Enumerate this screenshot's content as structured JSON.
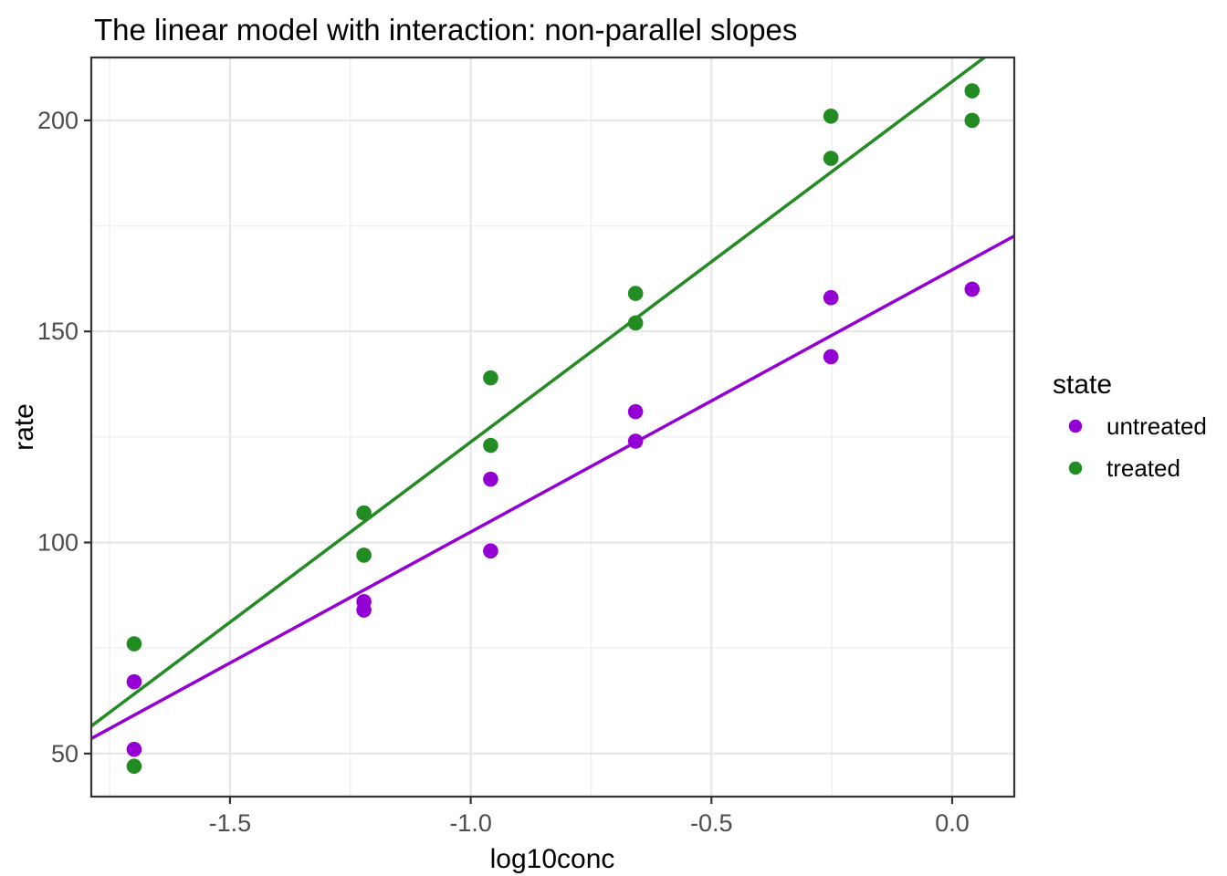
{
  "title": "The linear model with interaction: non-parallel slopes",
  "chart_data": {
    "type": "scatter",
    "title": "The linear model with interaction: non-parallel slopes",
    "xlabel": "log10conc",
    "ylabel": "rate",
    "xlim": [
      -1.788,
      0.129
    ],
    "ylim": [
      39.8,
      214.9
    ],
    "grid": true,
    "x_ticks": [
      {
        "value": -1.5,
        "label": "-1.5"
      },
      {
        "value": -1.0,
        "label": "-1.0"
      },
      {
        "value": -0.5,
        "label": "-0.5"
      },
      {
        "value": 0.0,
        "label": "0.0"
      }
    ],
    "y_ticks": [
      {
        "value": 50,
        "label": "50"
      },
      {
        "value": 100,
        "label": "100"
      },
      {
        "value": 150,
        "label": "150"
      },
      {
        "value": 200,
        "label": "200"
      }
    ],
    "x_minor": [
      -1.75,
      -1.25,
      -0.75,
      -0.25
    ],
    "y_minor": [
      75,
      125,
      175
    ],
    "legend": {
      "title": "state",
      "position": "right",
      "items": [
        {
          "label": "untreated",
          "color": "#9400D3"
        },
        {
          "label": "treated",
          "color": "#228B22"
        }
      ]
    },
    "series": [
      {
        "name": "untreated",
        "color": "#9400D3",
        "points": [
          [
            -1.699,
            67
          ],
          [
            -1.699,
            51
          ],
          [
            -1.2218,
            84
          ],
          [
            -1.2218,
            86
          ],
          [
            -0.9586,
            98
          ],
          [
            -0.9586,
            115
          ],
          [
            -0.6576,
            131
          ],
          [
            -0.6576,
            124
          ],
          [
            -0.2518,
            144
          ],
          [
            -0.2518,
            158
          ],
          [
            0.0414,
            160
          ]
        ],
        "fit_line": {
          "slope": 62.1,
          "intercept": 164.6
        }
      },
      {
        "name": "treated",
        "color": "#228B22",
        "points": [
          [
            -1.699,
            76
          ],
          [
            -1.699,
            47
          ],
          [
            -1.2218,
            97
          ],
          [
            -1.2218,
            107
          ],
          [
            -0.9586,
            123
          ],
          [
            -0.9586,
            139
          ],
          [
            -0.6576,
            159
          ],
          [
            -0.6576,
            152
          ],
          [
            -0.2518,
            191
          ],
          [
            -0.2518,
            201
          ],
          [
            0.0414,
            207
          ],
          [
            0.0414,
            200
          ]
        ],
        "fit_line": {
          "slope": 85.4,
          "intercept": 209.2
        }
      }
    ]
  },
  "style": {
    "background": "#FFFFFF",
    "grid_major_color": "#E8E8E8",
    "grid_minor_color": "#F0F0F0",
    "panel_border_color": "#333333",
    "tick_color": "#333333",
    "tick_label_color": "#4D4D4D",
    "text_color": "#000000"
  }
}
